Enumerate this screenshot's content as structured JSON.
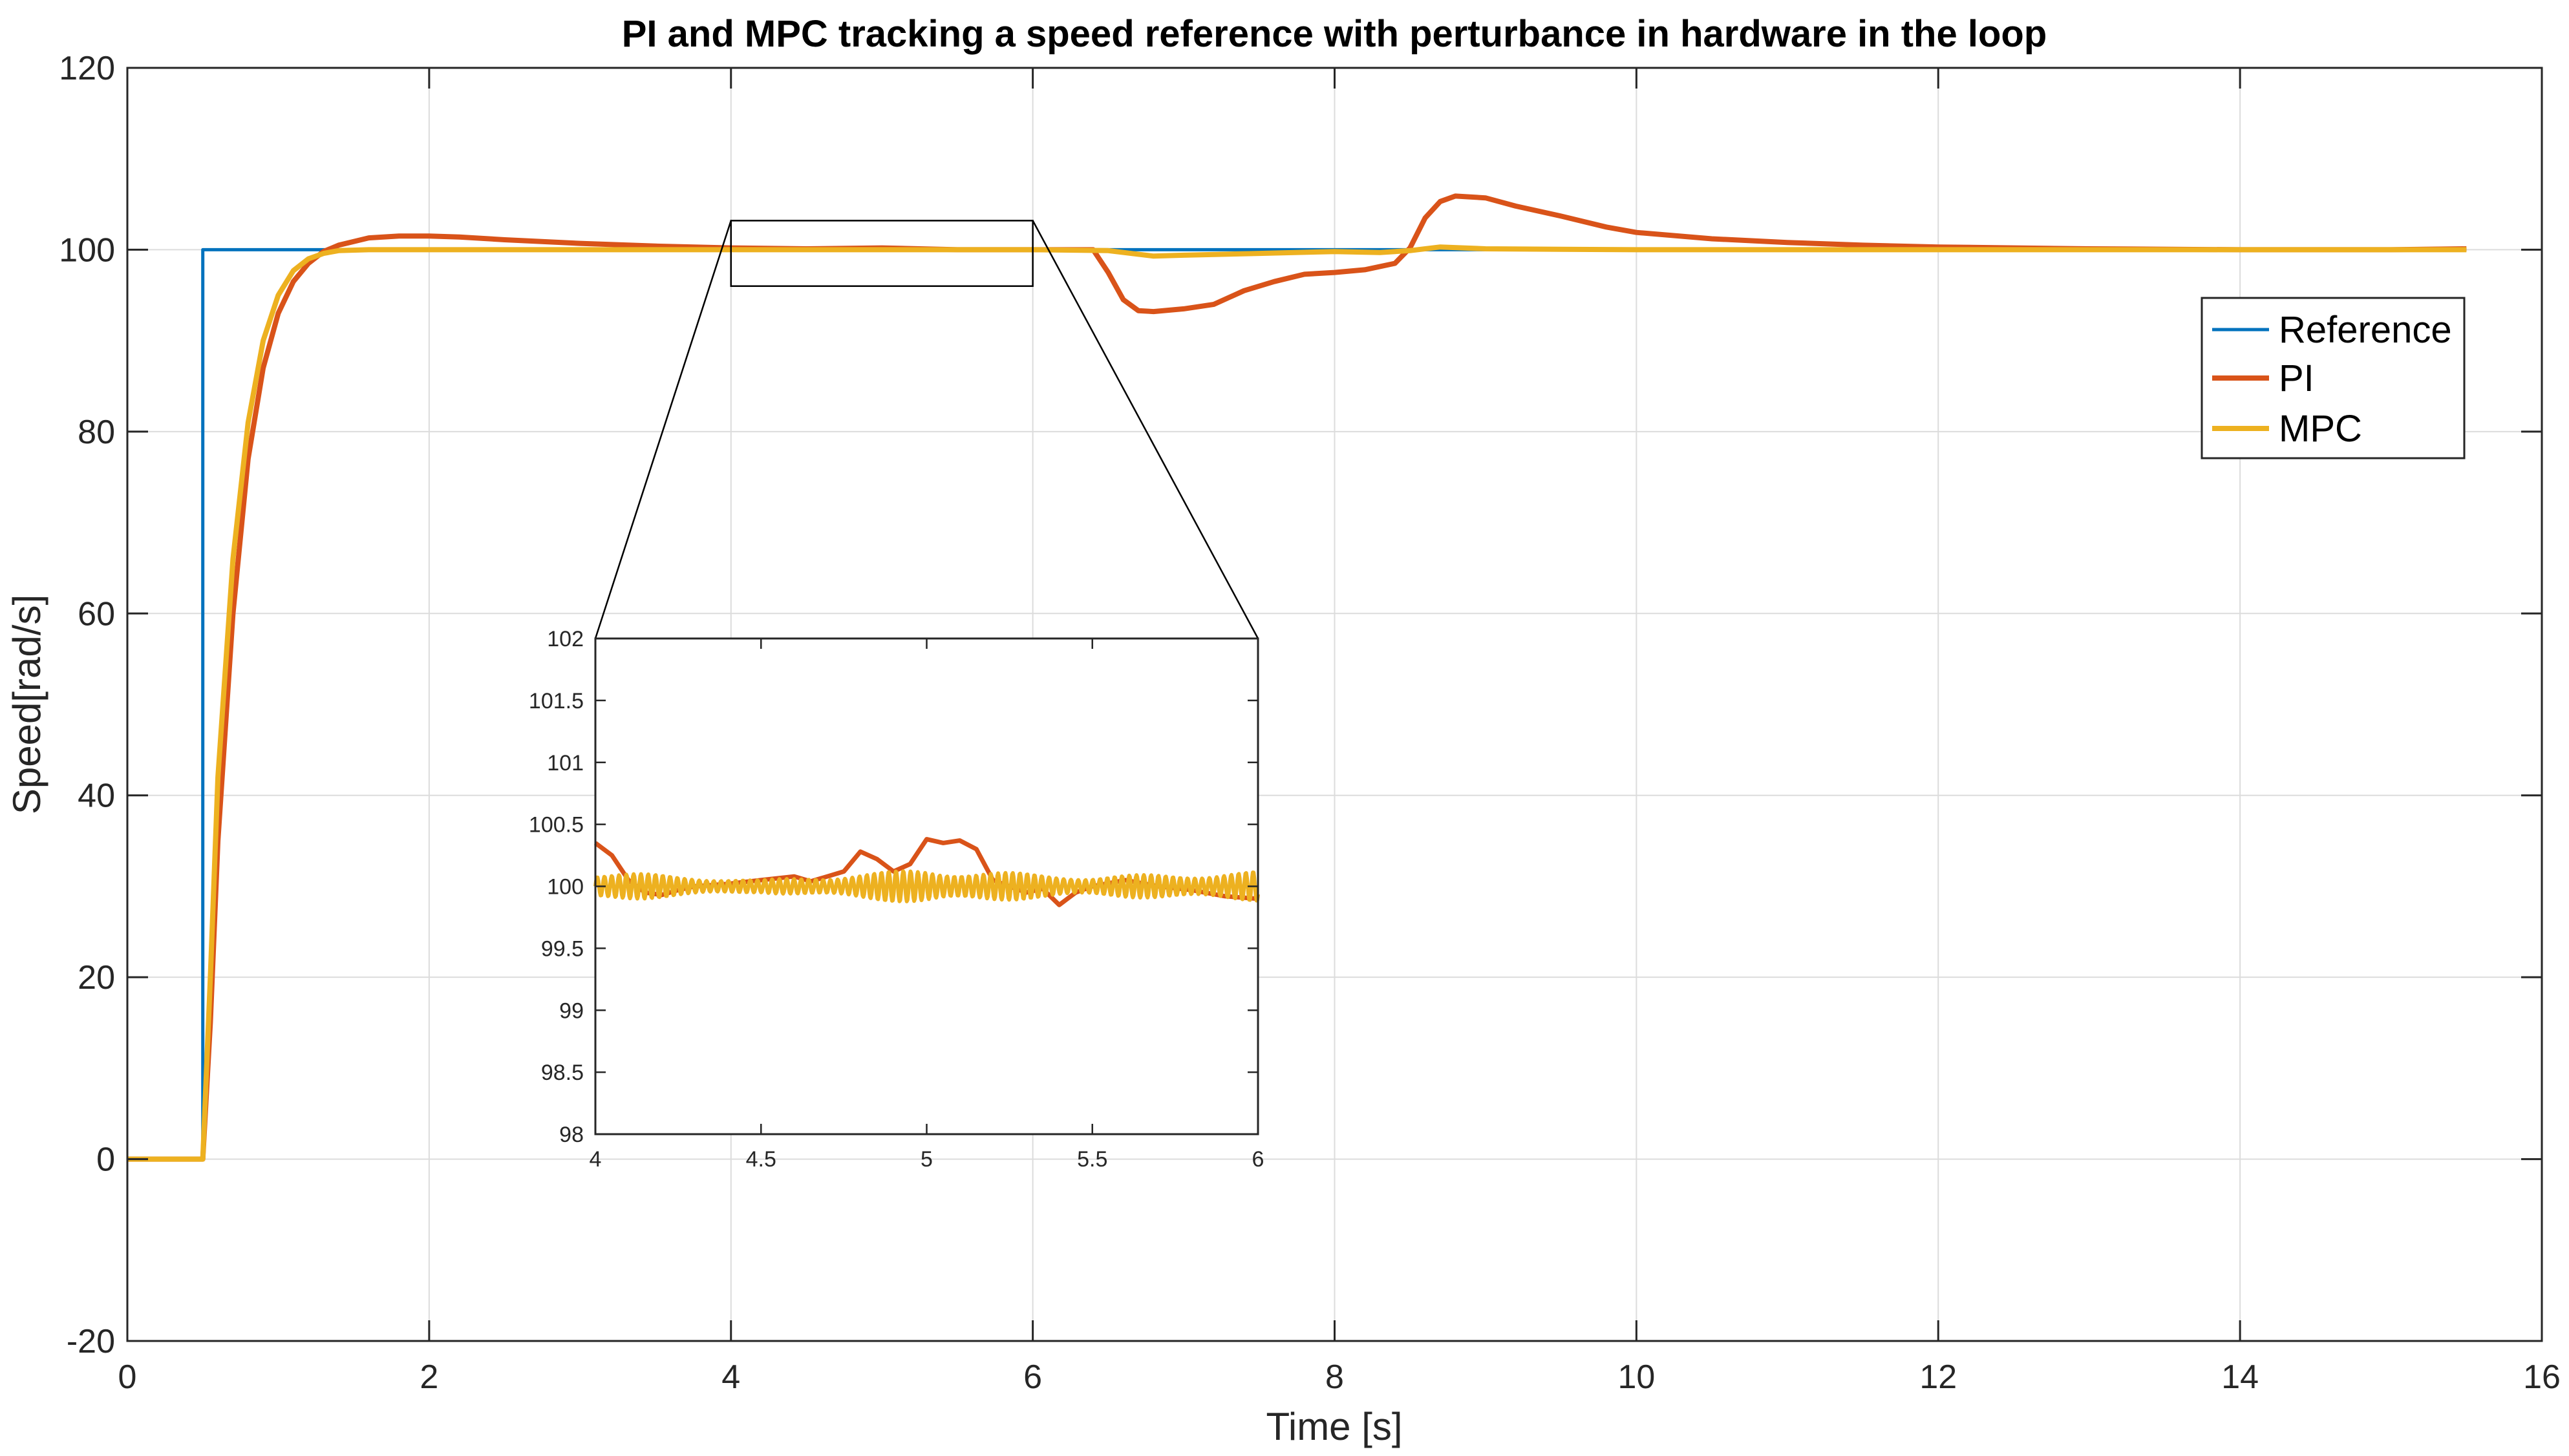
{
  "chart_data": {
    "type": "line",
    "title": "PI and MPC tracking a speed reference with perturbance in hardware in the loop",
    "xlabel": "Time [s]",
    "ylabel": "Speed[rad/s]",
    "xlim": [
      0,
      16
    ],
    "ylim": [
      -20,
      120
    ],
    "xticks": [
      0,
      2,
      4,
      6,
      8,
      10,
      12,
      14,
      16
    ],
    "xtick_labels": [
      "0",
      "2",
      "4",
      "6",
      "8",
      "10",
      "12",
      "14",
      "16"
    ],
    "yticks": [
      -20,
      0,
      20,
      40,
      60,
      80,
      100,
      120
    ],
    "ytick_labels": [
      "-20",
      "0",
      "20",
      "40",
      "60",
      "80",
      "100",
      "120"
    ],
    "grid": true,
    "legend_position": "top-right",
    "series": [
      {
        "name": "Reference",
        "color": "#0072BD",
        "x": [
          0,
          0.5,
          0.5,
          15.5
        ],
        "y": [
          0,
          0,
          100,
          100
        ]
      },
      {
        "name": "PI",
        "color": "#D95319",
        "x": [
          0,
          0.5,
          0.55,
          0.6,
          0.7,
          0.8,
          0.9,
          1.0,
          1.1,
          1.2,
          1.3,
          1.4,
          1.6,
          1.8,
          2.0,
          2.2,
          2.5,
          3.0,
          3.5,
          4.0,
          4.5,
          5.0,
          5.5,
          6.0,
          6.4,
          6.5,
          6.6,
          6.7,
          6.8,
          7.0,
          7.2,
          7.4,
          7.6,
          7.8,
          8.0,
          8.2,
          8.4,
          8.5,
          8.6,
          8.7,
          8.8,
          9.0,
          9.2,
          9.5,
          9.8,
          10.0,
          10.5,
          11.0,
          11.5,
          12.0,
          13.0,
          14.0,
          15.0,
          15.5
        ],
        "y": [
          0,
          0,
          15,
          35,
          60,
          77,
          87,
          93,
          96.5,
          98.5,
          99.8,
          100.5,
          101.3,
          101.5,
          101.5,
          101.4,
          101.1,
          100.7,
          100.4,
          100.2,
          100.1,
          100.2,
          100.0,
          100.0,
          100.0,
          97.5,
          94.5,
          93.3,
          93.2,
          93.5,
          94.0,
          95.5,
          96.5,
          97.3,
          97.5,
          97.8,
          98.5,
          100.2,
          103.5,
          105.3,
          105.9,
          105.7,
          104.8,
          103.7,
          102.5,
          101.9,
          101.2,
          100.8,
          100.5,
          100.3,
          100.1,
          100.0,
          100.0,
          100.1
        ]
      },
      {
        "name": "MPC",
        "color": "#EDB120",
        "x": [
          0,
          0.5,
          0.55,
          0.6,
          0.7,
          0.8,
          0.9,
          1.0,
          1.1,
          1.2,
          1.3,
          1.4,
          1.6,
          1.8,
          2.0,
          3.0,
          4.0,
          5.0,
          6.0,
          6.5,
          6.8,
          7.0,
          7.5,
          8.0,
          8.3,
          8.5,
          8.7,
          9.0,
          10.0,
          12.0,
          14.0,
          15.5
        ],
        "y": [
          0,
          0,
          20,
          42,
          66,
          81,
          90,
          95,
          97.7,
          99.0,
          99.6,
          99.9,
          100.0,
          100.0,
          100.0,
          100.0,
          100.0,
          100.0,
          100.0,
          99.9,
          99.3,
          99.4,
          99.6,
          99.8,
          99.7,
          99.9,
          100.3,
          100.1,
          100.0,
          100.0,
          100.0,
          100.0
        ]
      }
    ],
    "zoom_region": {
      "x": [
        4,
        6
      ],
      "y": [
        96,
        103.2
      ]
    },
    "inset": {
      "xlim": [
        4,
        6
      ],
      "ylim": [
        98,
        102
      ],
      "xticks": [
        4,
        4.5,
        5,
        5.5,
        6
      ],
      "xtick_labels": [
        "4",
        "4.5",
        "5",
        "5.5",
        "6"
      ],
      "yticks": [
        98,
        98.5,
        99,
        99.5,
        100,
        100.5,
        101,
        101.5,
        102
      ],
      "ytick_labels": [
        "98",
        "98.5",
        "99",
        "99.5",
        "100",
        "100.5",
        "101",
        "101.5",
        "102"
      ],
      "series": [
        {
          "name": "PI",
          "color": "#D95319",
          "x": [
            4.0,
            4.05,
            4.1,
            4.15,
            4.2,
            4.25,
            4.3,
            4.4,
            4.5,
            4.6,
            4.65,
            4.7,
            4.75,
            4.8,
            4.85,
            4.9,
            4.95,
            5.0,
            5.05,
            5.1,
            5.15,
            5.2,
            5.25,
            5.3,
            5.35,
            5.4,
            5.45,
            5.5,
            5.6,
            5.7,
            5.8,
            5.9,
            6.0
          ],
          "y": [
            100.35,
            100.25,
            100.05,
            99.95,
            99.93,
            99.97,
            100.0,
            100.02,
            100.05,
            100.08,
            100.04,
            100.08,
            100.12,
            100.28,
            100.22,
            100.12,
            100.18,
            100.38,
            100.35,
            100.37,
            100.3,
            100.05,
            100.0,
            99.95,
            99.98,
            99.85,
            99.95,
            100.0,
            100.05,
            100.0,
            99.97,
            99.92,
            99.9
          ]
        },
        {
          "name": "MPC",
          "color": "#EDB120",
          "x": [
            4.0,
            6.0
          ],
          "y": [
            100.0,
            100.0
          ],
          "oscillation_amplitude": [
            0.12,
            0.05,
            0.14,
            0.08,
            0.12
          ],
          "oscillation_period": 0.022
        }
      ]
    }
  }
}
